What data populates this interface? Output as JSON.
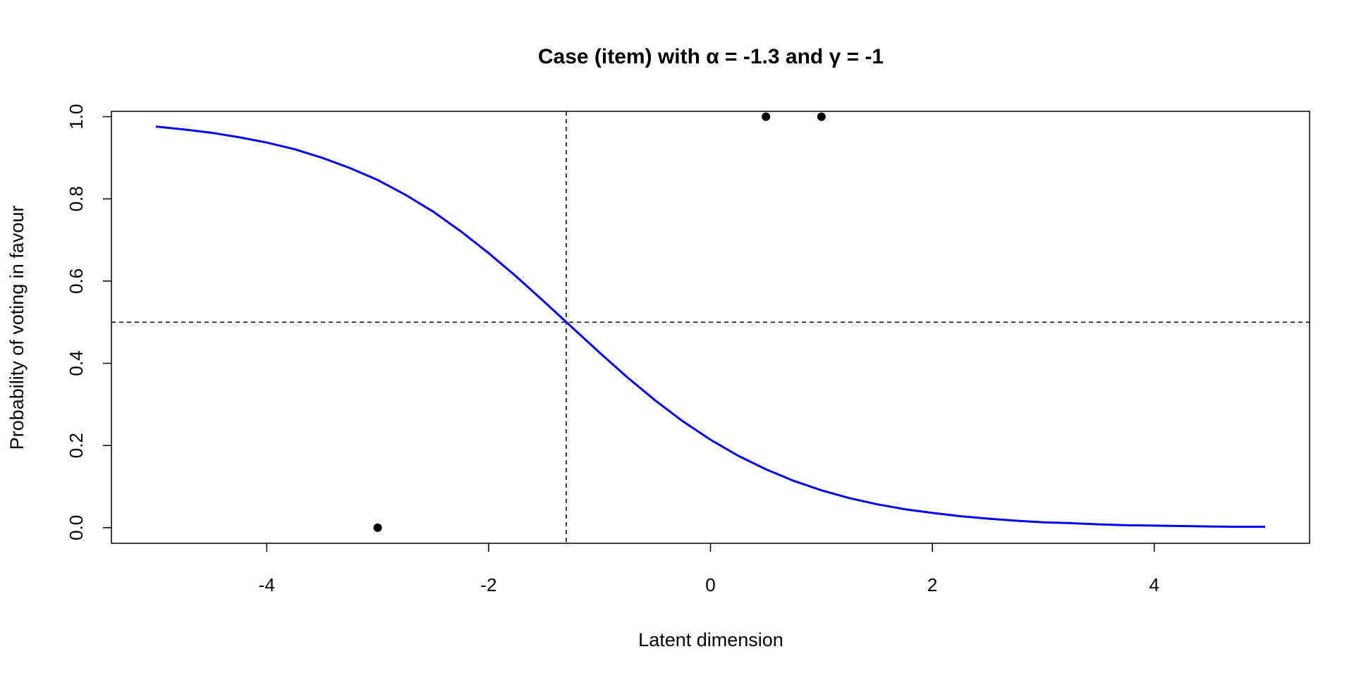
{
  "chart_data": {
    "type": "line",
    "title": "Case (item) with α = -1.3 and γ = -1",
    "xlabel": "Latent dimension",
    "ylabel": "Probability of voting in favour",
    "xlim": [
      -5.4,
      5.4
    ],
    "ylim": [
      -0.038,
      1.013
    ],
    "xticks": [
      -4,
      -2,
      0,
      2,
      4
    ],
    "yticks": [
      {
        "value": 0,
        "label": "0.0"
      },
      0.2,
      0.4,
      0.6,
      0.8,
      {
        "value": 1,
        "label": "1.0"
      }
    ],
    "reference_lines": {
      "vline": -1.3,
      "hline": 0.5
    },
    "series": [
      {
        "type": "line",
        "color": "#0000ff",
        "x": [
          -5,
          -4.75,
          -4.5,
          -4.25,
          -4,
          -3.75,
          -3.5,
          -3.25,
          -3,
          -2.75,
          -2.5,
          -2.25,
          -2,
          -1.75,
          -1.5,
          -1.25,
          -1,
          -0.75,
          -0.5,
          -0.25,
          0,
          0.25,
          0.5,
          0.75,
          1,
          1.25,
          1.5,
          1.75,
          2,
          2.25,
          2.5,
          2.75,
          3,
          3.25,
          3.5,
          3.75,
          4,
          4.25,
          4.5,
          4.75,
          5
        ],
        "values": [
          0.976,
          0.969,
          0.961,
          0.95,
          0.937,
          0.921,
          0.9,
          0.875,
          0.846,
          0.81,
          0.769,
          0.721,
          0.668,
          0.611,
          0.55,
          0.488,
          0.426,
          0.366,
          0.31,
          0.259,
          0.214,
          0.175,
          0.142,
          0.114,
          0.091,
          0.072,
          0.057,
          0.045,
          0.036,
          0.028,
          0.022,
          0.017,
          0.013,
          0.011,
          0.008,
          0.006,
          0.005,
          0.004,
          0.003,
          0.002,
          0.002
        ]
      },
      {
        "type": "scatter",
        "color": "#000000",
        "x": [
          -3,
          0.5,
          1
        ],
        "values": [
          0,
          1,
          1
        ]
      }
    ]
  }
}
